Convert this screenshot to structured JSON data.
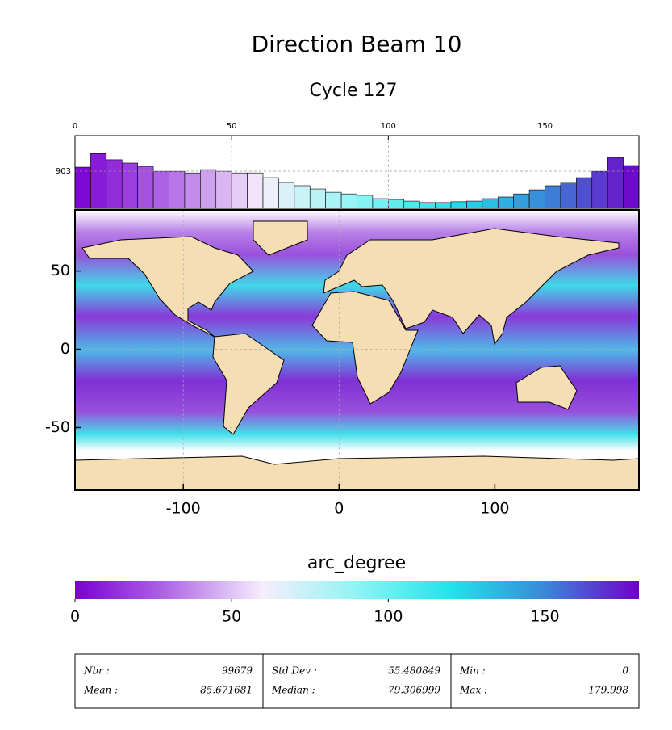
{
  "chart_data": [
    {
      "type": "histogram",
      "title": "Direction Beam 10",
      "subtitle": "Cycle 127",
      "bins": [
        0,
        5,
        10,
        15,
        20,
        25,
        30,
        35,
        40,
        45,
        50,
        55,
        60,
        65,
        70,
        75,
        80,
        85,
        90,
        95,
        100,
        105,
        110,
        115,
        120,
        125,
        130,
        135,
        140,
        145,
        150,
        155,
        160,
        165,
        170,
        175,
        180
      ],
      "values": [
        1000,
        1330,
        1180,
        1100,
        1020,
        900,
        900,
        860,
        940,
        900,
        860,
        860,
        745,
        630,
        550,
        470,
        390,
        350,
        315,
        235,
        215,
        175,
        140,
        140,
        160,
        175,
        235,
        275,
        350,
        450,
        550,
        630,
        745,
        900,
        1235,
        1040
      ],
      "xlim": [
        0,
        180
      ],
      "xticks": [
        0,
        50,
        100,
        150
      ],
      "ylim": [
        0,
        1767
      ],
      "yticks": [
        903
      ],
      "grid": true
    },
    {
      "type": "map",
      "xlim": [
        -169.5,
        192.5
      ],
      "ylim": [
        -90,
        89
      ],
      "xticks": [
        -100,
        0,
        100
      ],
      "yticks": [
        -50,
        0,
        50
      ],
      "grid": true,
      "land_color": "#f5deb3"
    },
    {
      "type": "colorbar",
      "title": "arc_degree",
      "xlim": [
        0,
        180
      ],
      "xticks": [
        0,
        50,
        100,
        150
      ],
      "colormap": [
        "#7a00d2",
        "#b26ae6",
        "#f6eefc",
        "#8ff4f4",
        "#20e4ea",
        "#3a88d8",
        "#7000c8"
      ]
    }
  ],
  "stats": {
    "columns": [
      [
        {
          "label": "Nbr :",
          "value": "99679"
        },
        {
          "label": "Mean :",
          "value": "85.671681"
        }
      ],
      [
        {
          "label": "Std Dev :",
          "value": "55.480849"
        },
        {
          "label": "Median :",
          "value": "79.306999"
        }
      ],
      [
        {
          "label": "Min :",
          "value": "0"
        },
        {
          "label": "Max :",
          "value": "179.998"
        }
      ]
    ]
  }
}
